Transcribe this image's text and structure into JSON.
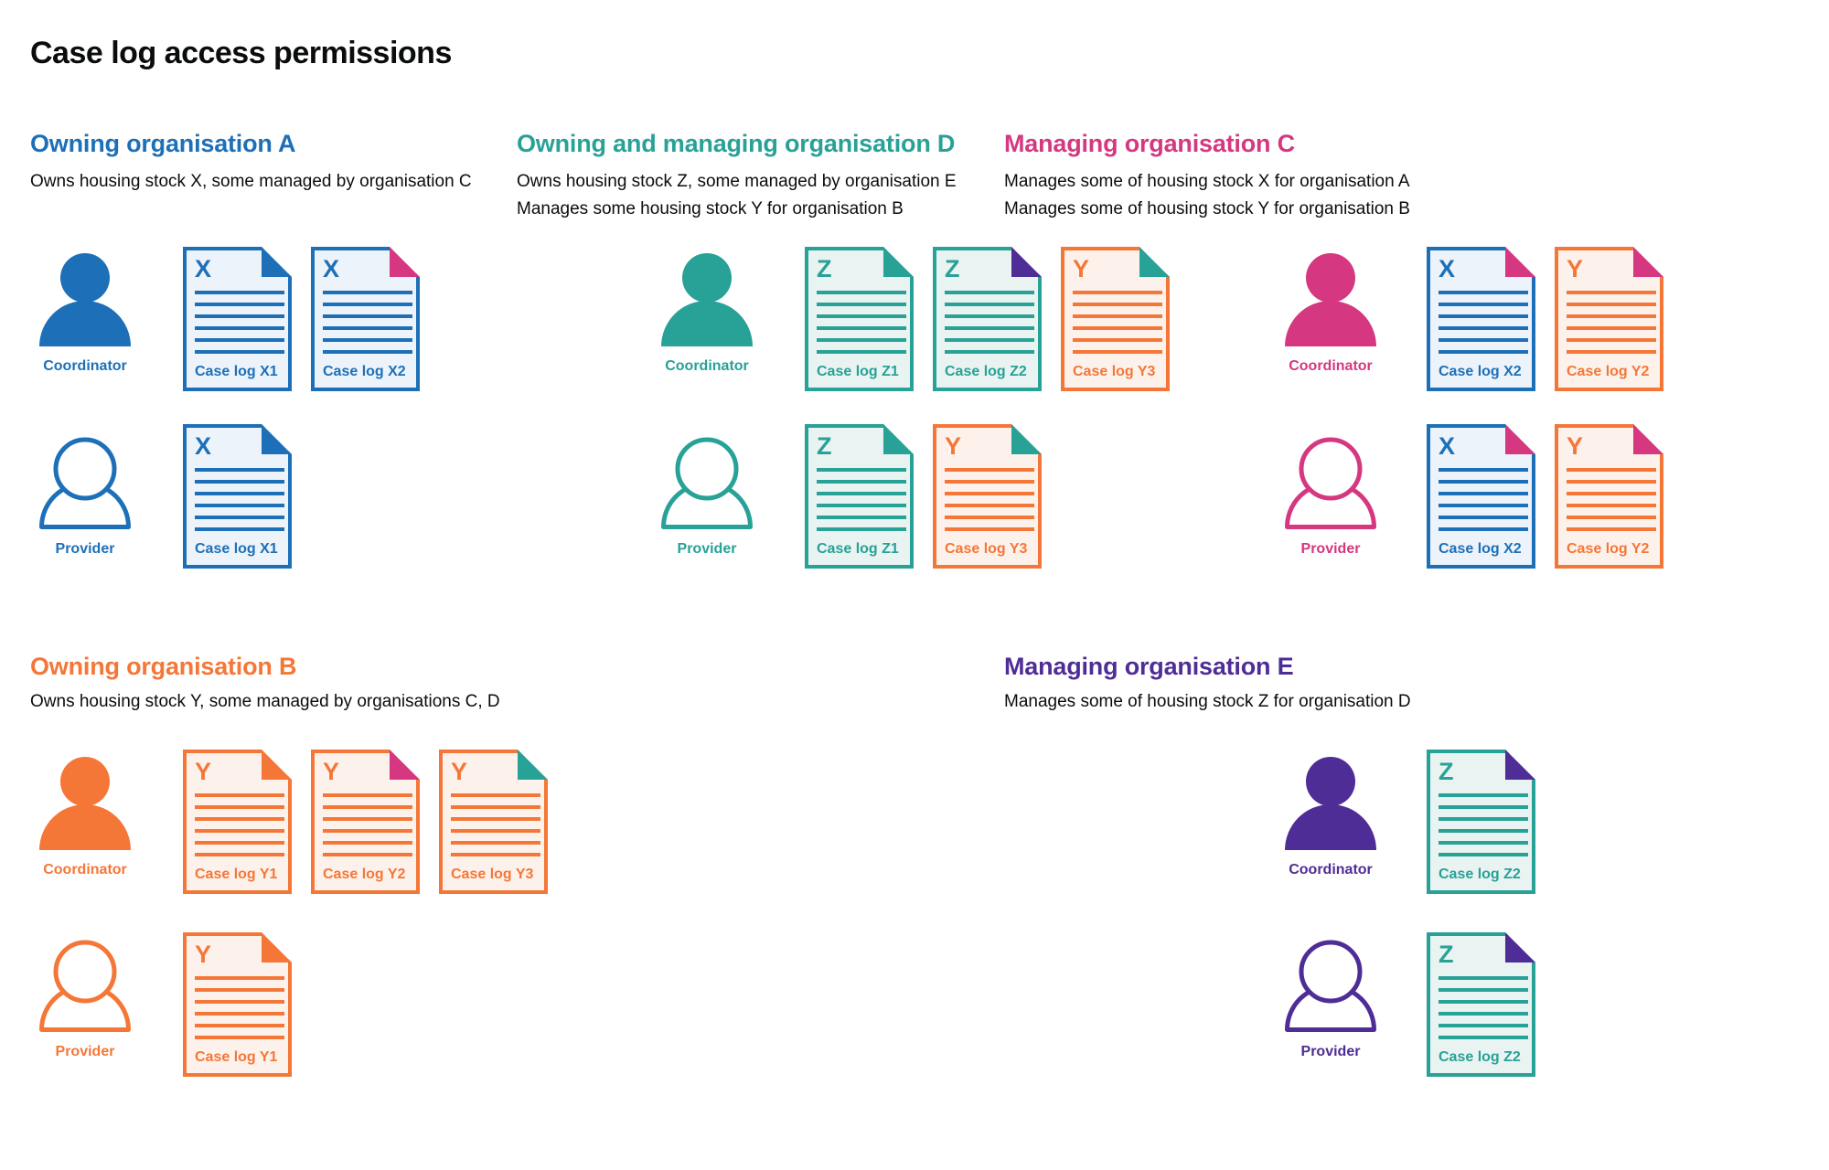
{
  "page": {
    "title": "Case log access permissions"
  },
  "palette": {
    "blue": "#1d70b8",
    "teal": "#28a197",
    "orange": "#f47738",
    "pink": "#d53880",
    "purple": "#4f2d96",
    "ink": "#0b0c0c",
    "doc_bg_blue": "#edf3fa",
    "doc_bg_teal": "#e9f4f2",
    "doc_bg_orange": "#fdf2eb"
  },
  "organisations": [
    {
      "id": "a",
      "name": "Owning organisation A",
      "color": "blue",
      "description_lines": [
        "Owns housing stock X, some managed by organisation C"
      ],
      "rows": [
        {
          "role_label": "Coordinator",
          "person": "filled",
          "docs": [
            {
              "letter": "X",
              "label": "Case log X1",
              "color": "blue",
              "fold_color": "blue"
            },
            {
              "letter": "X",
              "label": "Case log X2",
              "color": "blue",
              "fold_color": "pink"
            }
          ]
        },
        {
          "role_label": "Provider",
          "person": "outline",
          "docs": [
            {
              "letter": "X",
              "label": "Case log X1",
              "color": "blue",
              "fold_color": "blue"
            }
          ]
        }
      ]
    },
    {
      "id": "d",
      "name": "Owning and managing organisation D",
      "color": "teal",
      "description_lines": [
        "Owns housing stock Z, some managed by organisation E",
        "Manages some housing stock Y for organisation B"
      ],
      "rows": [
        {
          "role_label": "Coordinator",
          "person": "filled",
          "docs": [
            {
              "letter": "Z",
              "label": "Case log Z1",
              "color": "teal",
              "fold_color": "teal"
            },
            {
              "letter": "Z",
              "label": "Case log Z2",
              "color": "teal",
              "fold_color": "purple"
            },
            {
              "letter": "Y",
              "label": "Case log Y3",
              "color": "orange",
              "fold_color": "teal"
            }
          ]
        },
        {
          "role_label": "Provider",
          "person": "outline",
          "docs": [
            {
              "letter": "Z",
              "label": "Case log Z1",
              "color": "teal",
              "fold_color": "teal"
            },
            {
              "letter": "Y",
              "label": "Case log Y3",
              "color": "orange",
              "fold_color": "teal"
            }
          ]
        }
      ]
    },
    {
      "id": "c",
      "name": "Managing organisation C",
      "color": "pink",
      "description_lines": [
        "Manages some of housing stock X for organisation A",
        "Manages some of housing stock Y for organisation B"
      ],
      "rows": [
        {
          "role_label": "Coordinator",
          "person": "filled",
          "docs": [
            {
              "letter": "X",
              "label": "Case log X2",
              "color": "blue",
              "fold_color": "pink"
            },
            {
              "letter": "Y",
              "label": "Case log Y2",
              "color": "orange",
              "fold_color": "pink"
            }
          ]
        },
        {
          "role_label": "Provider",
          "person": "outline",
          "docs": [
            {
              "letter": "X",
              "label": "Case log X2",
              "color": "blue",
              "fold_color": "pink"
            },
            {
              "letter": "Y",
              "label": "Case log Y2",
              "color": "orange",
              "fold_color": "pink"
            }
          ]
        }
      ]
    },
    {
      "id": "b",
      "name": "Owning organisation B",
      "color": "orange",
      "description_lines": [
        "Owns housing stock Y, some managed by organisations C, D"
      ],
      "rows": [
        {
          "role_label": "Coordinator",
          "person": "filled",
          "docs": [
            {
              "letter": "Y",
              "label": "Case log Y1",
              "color": "orange",
              "fold_color": "orange"
            },
            {
              "letter": "Y",
              "label": "Case log Y2",
              "color": "orange",
              "fold_color": "pink"
            },
            {
              "letter": "Y",
              "label": "Case log Y3",
              "color": "orange",
              "fold_color": "teal"
            }
          ]
        },
        {
          "role_label": "Provider",
          "person": "outline",
          "docs": [
            {
              "letter": "Y",
              "label": "Case log Y1",
              "color": "orange",
              "fold_color": "orange"
            }
          ]
        }
      ]
    },
    {
      "id": "e",
      "name": "Managing organisation E",
      "color": "purple",
      "description_lines": [
        "Manages some of housing stock Z for organisation D"
      ],
      "rows": [
        {
          "role_label": "Coordinator",
          "person": "filled",
          "docs": [
            {
              "letter": "Z",
              "label": "Case log Z2",
              "color": "teal",
              "fold_color": "purple"
            }
          ]
        },
        {
          "role_label": "Provider",
          "person": "outline",
          "docs": [
            {
              "letter": "Z",
              "label": "Case log Z2",
              "color": "teal",
              "fold_color": "purple"
            }
          ]
        }
      ]
    }
  ]
}
